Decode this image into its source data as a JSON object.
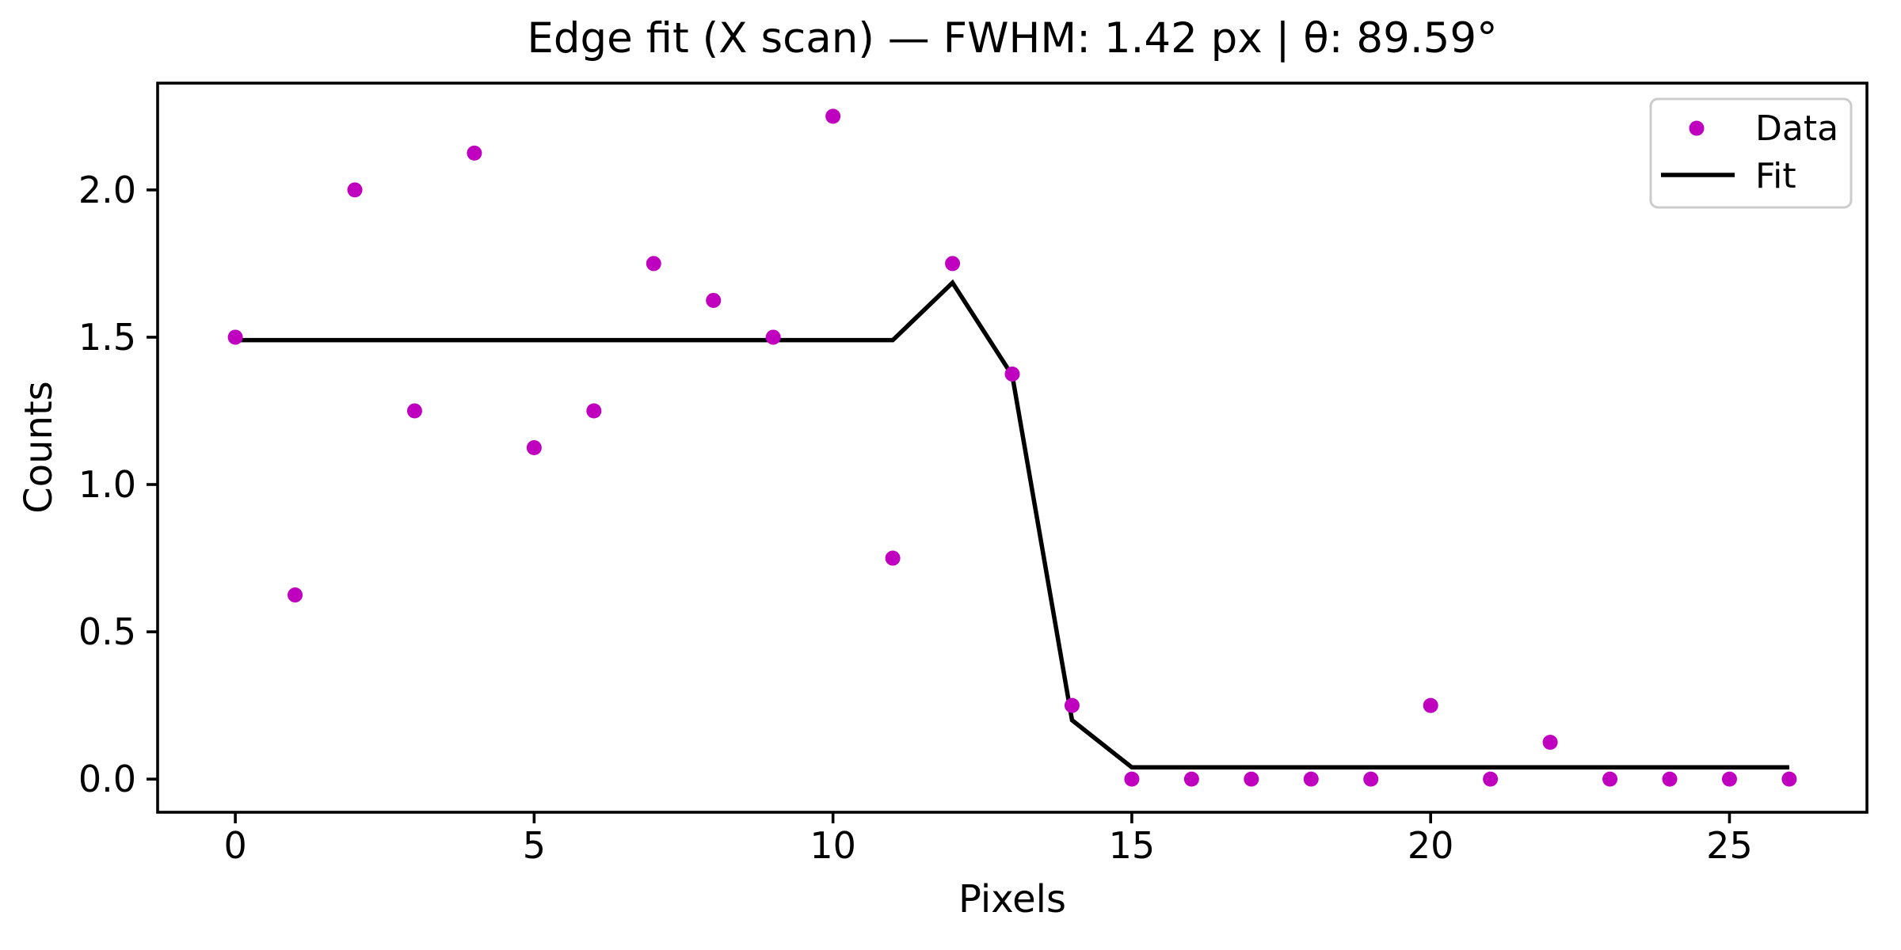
{
  "figure": {
    "background": "#FFFFFF",
    "frame_color": "#000000"
  },
  "chart_data": {
    "type": "scatter",
    "title": "Edge fit (X scan) — FWHM: 1.42 px | θ: 89.59°",
    "xlabel": "Pixels",
    "ylabel": "Counts",
    "xlim": [
      -1.3,
      27.3
    ],
    "ylim": [
      -0.1125,
      2.3625
    ],
    "grid": false,
    "x_tick_values": [
      0,
      5,
      10,
      15,
      20,
      25
    ],
    "x_tick_labels": [
      "0",
      "5",
      "10",
      "15",
      "20",
      "25"
    ],
    "y_tick_values": [
      0.0,
      0.5,
      1.0,
      1.5,
      2.0
    ],
    "y_tick_labels": [
      "0.0",
      "0.5",
      "1.0",
      "1.5",
      "2.0"
    ],
    "series": [
      {
        "name": "Data",
        "type": "scatter",
        "color": "#BF00BF",
        "marker": "circle",
        "x": [
          0,
          1,
          2,
          3,
          4,
          5,
          6,
          7,
          8,
          9,
          10,
          11,
          12,
          13,
          14,
          15,
          16,
          17,
          18,
          19,
          20,
          21,
          22,
          23,
          24,
          25,
          26
        ],
        "y": [
          1.5,
          0.625,
          2.0,
          1.25,
          2.125,
          1.125,
          1.25,
          1.75,
          1.625,
          1.5,
          2.25,
          0.75,
          1.75,
          1.375,
          0.25,
          0.0,
          0.0,
          0.0,
          0.0,
          0.0,
          0.25,
          0.0,
          0.125,
          0.0,
          0.0,
          0.0,
          0.0
        ]
      },
      {
        "name": "Fit",
        "type": "line",
        "color": "#000000",
        "x": [
          0,
          11,
          12,
          13,
          14,
          15,
          26
        ],
        "y": [
          1.49,
          1.49,
          1.685,
          1.37,
          0.2,
          0.04,
          0.04
        ]
      }
    ],
    "legend": {
      "position": "upper right",
      "border_color": "#CCCCCC",
      "entries": [
        {
          "label": "Data",
          "glyph": "marker",
          "color": "#BF00BF"
        },
        {
          "label": "Fit",
          "glyph": "line",
          "color": "#000000"
        }
      ]
    }
  }
}
